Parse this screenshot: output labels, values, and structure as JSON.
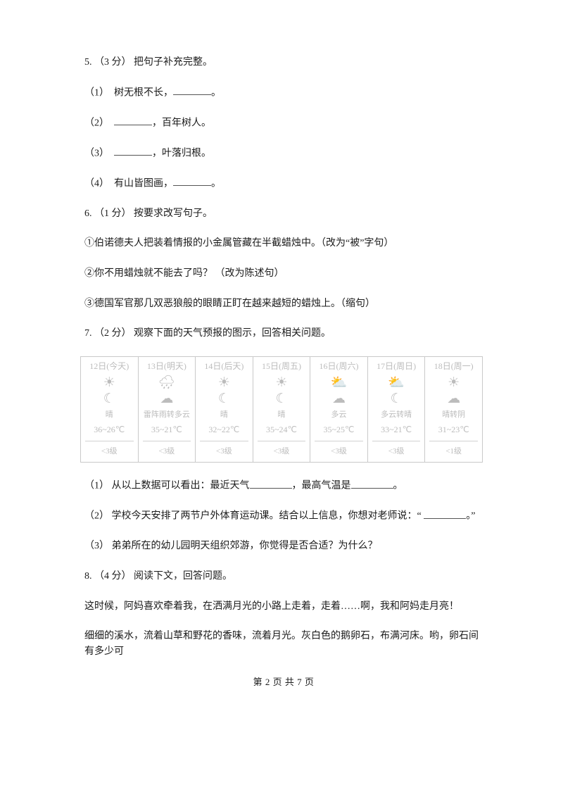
{
  "q5": {
    "stem": "5.  （3 分）  把句子补充完整。",
    "items": [
      {
        "num": "（1）",
        "before": "树无根不长，",
        "after": "。"
      },
      {
        "num": "（2）",
        "before": "",
        "after": "，百年树人。"
      },
      {
        "num": "（3）",
        "before": "",
        "after": "，叶落归根。"
      },
      {
        "num": "（4）",
        "before": "有山皆图画，",
        "after": "。"
      }
    ]
  },
  "q6": {
    "stem": "6.  （1 分）  按要求改写句子。",
    "items": [
      "①伯诺德夫人把装着情报的小金属管藏在半截蜡烛中。（改为“被”字句）",
      "②你不用蜡烛就不能去了吗？ （改为陈述句）",
      "③德国军官那几双恶狼般的眼睛正盯在越来越短的蜡烛上。（缩句）"
    ]
  },
  "q7": {
    "stem": "7.  （2 分）  观察下面的天气预报的图示，回答相关问题。",
    "days": [
      {
        "hd": "12日(今天)",
        "ico1": "☀",
        "ico2": "☾",
        "desc": "晴",
        "temp": "36~26℃",
        "wind": "<3级"
      },
      {
        "hd": "13日(明天)",
        "ico1": "🌧",
        "ico2": "☁",
        "desc": "雷阵雨转多云",
        "temp": "35~21℃",
        "wind": "<3级"
      },
      {
        "hd": "14日(后天)",
        "ico1": "☀",
        "ico2": "☾",
        "desc": "晴",
        "temp": "32~22℃",
        "wind": "<3级"
      },
      {
        "hd": "15日(周五)",
        "ico1": "☀",
        "ico2": "☾",
        "desc": "晴",
        "temp": "35~24℃",
        "wind": "<3级"
      },
      {
        "hd": "16日(周六)",
        "ico1": "⛅",
        "ico2": "☁",
        "desc": "多云",
        "temp": "35~25℃",
        "wind": "<3级"
      },
      {
        "hd": "17日(周日)",
        "ico1": "⛅",
        "ico2": "☾",
        "desc": "多云转晴",
        "temp": "33~21℃",
        "wind": "<3级"
      },
      {
        "hd": "18日(周一)",
        "ico1": "☀",
        "ico2": "☁",
        "desc": "晴转阴",
        "temp": "31~23℃",
        "wind": "<1级"
      }
    ],
    "sub1_a": "（1）  从以上数据可以看出：最近天气",
    "sub1_b": "，最高气温是",
    "sub1_c": "。",
    "sub2_a": "（2）  学校今天安排了两节户外体育运动课。结合以上信息，你想对老师说：“  ",
    "sub2_b": "。”",
    "sub3": "（3）  弟弟所在的幼儿园明天组织郊游，你觉得是否合适？为什么？"
  },
  "q8": {
    "stem": "8.  （4 分）  阅读下文，回答问题。",
    "p1": "这时候，阿妈喜欢牵着我，在洒满月光的小路上走着，走着……啊，我和阿妈走月亮！",
    "p2": "细细的溪水，流着山草和野花的香味，流着月光。灰白色的鹅卵石，布满河床。哟，卵石间有多少可"
  },
  "footer": "第 2 页 共 7 页"
}
